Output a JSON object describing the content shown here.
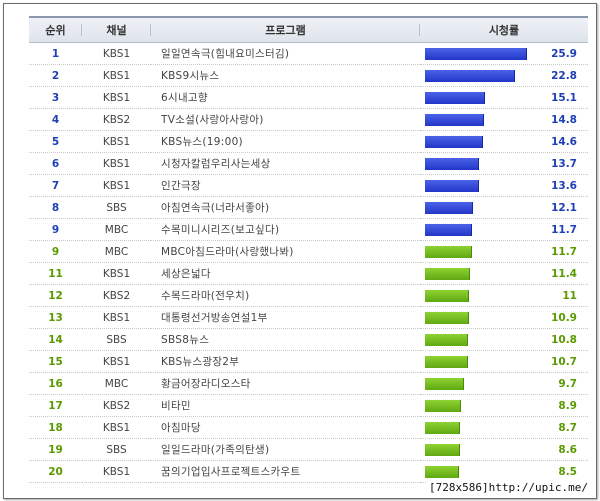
{
  "header": {
    "rank": "순위",
    "channel": "채널",
    "program": "프로그램",
    "rating": "시청률"
  },
  "colors": {
    "blue": "#2a3fd0",
    "green": "#6cb61c",
    "rank_blue": "#1e3fb5",
    "rank_green": "#5a9a00"
  },
  "rows": [
    {
      "rank": "1",
      "channel": "KBS1",
      "program": "일일연속극(힘내요미스터김)",
      "rating": "25.9",
      "value": 25.9,
      "color": "blue"
    },
    {
      "rank": "2",
      "channel": "KBS1",
      "program": "KBS9시뉴스",
      "rating": "22.8",
      "value": 22.8,
      "color": "blue"
    },
    {
      "rank": "3",
      "channel": "KBS1",
      "program": "6시내고향",
      "rating": "15.1",
      "value": 15.1,
      "color": "blue"
    },
    {
      "rank": "4",
      "channel": "KBS2",
      "program": "TV소설(사랑아사랑아)",
      "rating": "14.8",
      "value": 14.8,
      "color": "blue"
    },
    {
      "rank": "5",
      "channel": "KBS1",
      "program": "KBS뉴스(19:00)",
      "rating": "14.6",
      "value": 14.6,
      "color": "blue"
    },
    {
      "rank": "6",
      "channel": "KBS1",
      "program": "시청자칼럼우리사는세상",
      "rating": "13.7",
      "value": 13.7,
      "color": "blue"
    },
    {
      "rank": "7",
      "channel": "KBS1",
      "program": "인간극장",
      "rating": "13.6",
      "value": 13.6,
      "color": "blue"
    },
    {
      "rank": "8",
      "channel": "SBS",
      "program": "아침연속극(너라서좋아)",
      "rating": "12.1",
      "value": 12.1,
      "color": "blue"
    },
    {
      "rank": "9",
      "channel": "MBC",
      "program": "수목미니시리즈(보고싶다)",
      "rating": "11.7",
      "value": 11.7,
      "color": "blue"
    },
    {
      "rank": "9",
      "channel": "MBC",
      "program": "MBC아침드라마(사랑했나봐)",
      "rating": "11.7",
      "value": 11.7,
      "color": "green"
    },
    {
      "rank": "11",
      "channel": "KBS1",
      "program": "세상은넓다",
      "rating": "11.4",
      "value": 11.4,
      "color": "green"
    },
    {
      "rank": "12",
      "channel": "KBS2",
      "program": "수목드라마(전우치)",
      "rating": "11",
      "value": 11,
      "color": "green"
    },
    {
      "rank": "13",
      "channel": "KBS1",
      "program": "대통령선거방송연설1부",
      "rating": "10.9",
      "value": 10.9,
      "color": "green"
    },
    {
      "rank": "14",
      "channel": "SBS",
      "program": "SBS8뉴스",
      "rating": "10.8",
      "value": 10.8,
      "color": "green"
    },
    {
      "rank": "15",
      "channel": "KBS1",
      "program": "KBS뉴스광장2부",
      "rating": "10.7",
      "value": 10.7,
      "color": "green"
    },
    {
      "rank": "16",
      "channel": "MBC",
      "program": "황금어장라디오스타",
      "rating": "9.7",
      "value": 9.7,
      "color": "green"
    },
    {
      "rank": "17",
      "channel": "KBS2",
      "program": "비타민",
      "rating": "8.9",
      "value": 8.9,
      "color": "green"
    },
    {
      "rank": "18",
      "channel": "KBS1",
      "program": "아침마당",
      "rating": "8.7",
      "value": 8.7,
      "color": "green"
    },
    {
      "rank": "19",
      "channel": "SBS",
      "program": "일일드라마(가족의탄생)",
      "rating": "8.6",
      "value": 8.6,
      "color": "green"
    },
    {
      "rank": "20",
      "channel": "KBS1",
      "program": "꿈의기업입사프로젝트스카우트",
      "rating": "8.5",
      "value": 8.5,
      "color": "green"
    }
  ],
  "watermark": "[728x586]http://upic.me/"
}
